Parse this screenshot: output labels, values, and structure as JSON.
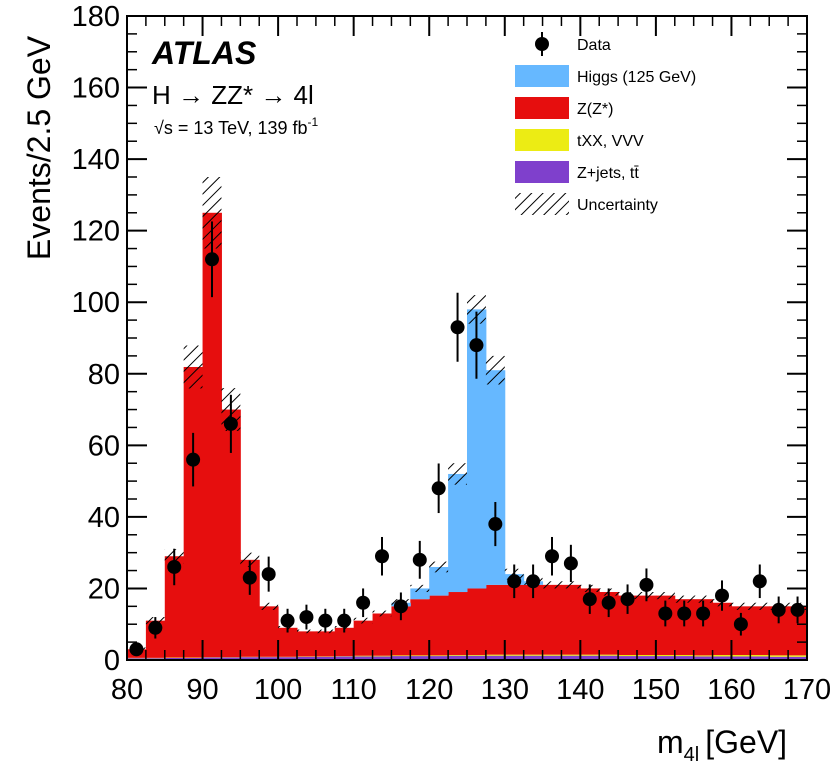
{
  "chart_data": {
    "type": "bar",
    "experiment": "ATLAS",
    "process": "H → ZZ* → 4l",
    "energy_label": "√s = 13 TeV, 139 fb",
    "energy_sup": "-1",
    "xlabel": "m",
    "xlabel_sub": "4l",
    "xlabel_unit": "[GeV]",
    "ylabel": "Events/2.5 GeV",
    "xlim": [
      80,
      170
    ],
    "ylim": [
      0,
      180
    ],
    "bin_width": 2.5,
    "x_ticks": [
      80,
      90,
      100,
      110,
      120,
      130,
      140,
      150,
      160,
      170
    ],
    "y_ticks": [
      0,
      20,
      40,
      60,
      80,
      100,
      120,
      140,
      160,
      180
    ],
    "legend": [
      {
        "label": "Data",
        "kind": "marker"
      },
      {
        "label": "Higgs (125 GeV)",
        "kind": "fill",
        "color": "#66b8ff"
      },
      {
        "label": "Z(Z*)",
        "kind": "fill",
        "color": "#e60e0e"
      },
      {
        "label": "tXX, VVV",
        "kind": "fill",
        "color": "#ecec14"
      },
      {
        "label": "Z+jets, tt̄",
        "kind": "fill",
        "color": "#7f40cc"
      },
      {
        "label": "Uncertainty",
        "kind": "hatch"
      }
    ],
    "bin_edges": [
      80,
      82.5,
      85,
      87.5,
      90,
      92.5,
      95,
      97.5,
      100,
      102.5,
      105,
      107.5,
      110,
      112.5,
      115,
      117.5,
      120,
      122.5,
      125,
      127.5,
      130,
      132.5,
      135,
      137.5,
      140,
      142.5,
      145,
      147.5,
      150,
      152.5,
      155,
      157.5,
      160,
      162.5,
      165,
      167.5,
      170
    ],
    "series": [
      {
        "name": "Z+jets, tt̄",
        "color": "#7f40cc",
        "values": [
          0.5,
          0.5,
          0.6,
          0.6,
          0.7,
          0.7,
          0.8,
          0.8,
          0.8,
          0.9,
          0.9,
          1.0,
          1.0,
          1.0,
          1.1,
          1.1,
          1.1,
          1.2,
          1.2,
          1.2,
          1.2,
          1.2,
          1.2,
          1.2,
          1.2,
          1.2,
          1.1,
          1.1,
          1.1,
          1.1,
          1.0,
          1.0,
          1.0,
          1.0,
          0.9,
          0.9
        ]
      },
      {
        "name": "tXX, VVV",
        "color": "#ecec14",
        "values": [
          0.1,
          0.1,
          0.1,
          0.1,
          0.1,
          0.1,
          0.1,
          0.1,
          0.1,
          0.1,
          0.1,
          0.1,
          0.2,
          0.2,
          0.2,
          0.2,
          0.2,
          0.2,
          0.2,
          0.3,
          0.3,
          0.3,
          0.3,
          0.3,
          0.3,
          0.3,
          0.3,
          0.3,
          0.3,
          0.3,
          0.3,
          0.4,
          0.4,
          0.4,
          0.4,
          0.4
        ]
      },
      {
        "name": "Z(Z*)",
        "color": "#e60e0e",
        "values": [
          2.4,
          10.4,
          28.3,
          81.2,
          124.2,
          69.2,
          27.1,
          14.1,
          8.1,
          7.0,
          7.0,
          7.9,
          9.8,
          11.8,
          13.7,
          15.7,
          16.7,
          17.6,
          18.6,
          19.5,
          19.5,
          19.5,
          19.5,
          19.5,
          18.5,
          17.5,
          16.6,
          16.6,
          16.6,
          15.6,
          15.7,
          14.6,
          13.6,
          13.6,
          13.7,
          13.7
        ]
      },
      {
        "name": "Higgs (125 GeV)",
        "color": "#66b8ff",
        "values": [
          0,
          0,
          0,
          0,
          0,
          0,
          0,
          0,
          0,
          0,
          0,
          0,
          0,
          0,
          1,
          3,
          8,
          33,
          78,
          60,
          3,
          1,
          0,
          0,
          0,
          0,
          0,
          0,
          0,
          0,
          0,
          0,
          0,
          0,
          0,
          0
        ]
      }
    ],
    "uncertainty": [
      0.5,
      1,
      2,
      6,
      10,
      6,
      2,
      1,
      0.5,
      0.5,
      0.5,
      0.5,
      0.8,
      0.8,
      1,
      1,
      1.5,
      3,
      4,
      4,
      1.5,
      1,
      1,
      1,
      1,
      1,
      1,
      1,
      1,
      1,
      1,
      1,
      1,
      1,
      1,
      1
    ],
    "data_points": {
      "x": [
        81.25,
        83.75,
        86.25,
        88.75,
        91.25,
        93.75,
        96.25,
        98.75,
        101.25,
        103.75,
        106.25,
        108.75,
        111.25,
        113.75,
        116.25,
        118.75,
        121.25,
        123.75,
        126.25,
        128.75,
        131.25,
        133.75,
        136.25,
        138.75,
        141.25,
        143.75,
        146.25,
        148.75,
        151.25,
        153.75,
        156.25,
        158.75,
        161.25,
        163.75,
        166.25,
        168.75
      ],
      "y": [
        3,
        9,
        26,
        56,
        112,
        66,
        23,
        24,
        11,
        12,
        11,
        11,
        16,
        29,
        15,
        28,
        48,
        93,
        88,
        38,
        22,
        22,
        29,
        27,
        17,
        16,
        17,
        21,
        13,
        13,
        13,
        18,
        10,
        22,
        14,
        14
      ]
    }
  }
}
